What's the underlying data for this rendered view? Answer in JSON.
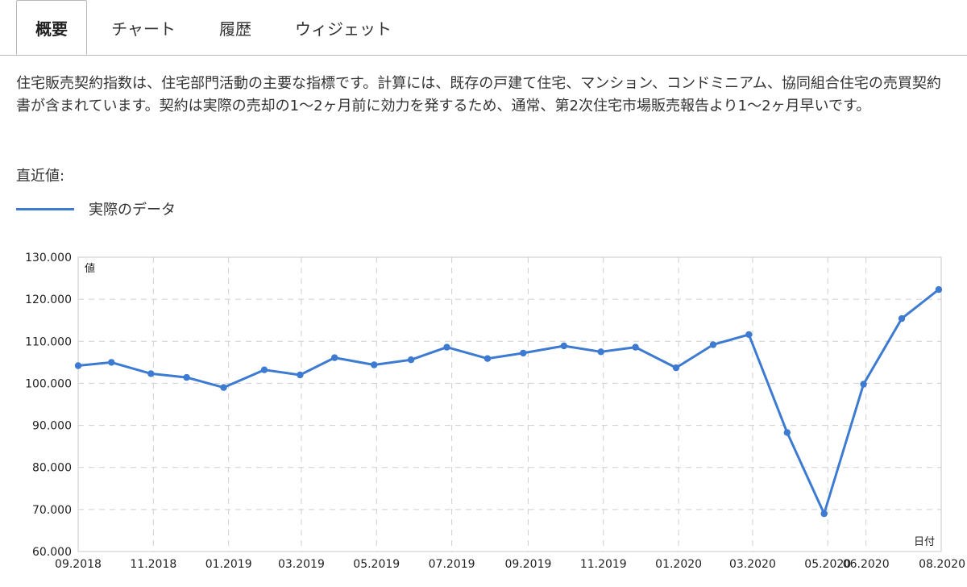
{
  "tabs": [
    {
      "label": "概要",
      "active": true
    },
    {
      "label": "チャート",
      "active": false
    },
    {
      "label": "履歴",
      "active": false
    },
    {
      "label": "ウィジェット",
      "active": false
    }
  ],
  "description": "住宅販売契約指数は、住宅部門活動の主要な指標です。計算には、既存の戸建て住宅、マンション、コンドミニアム、協同組合住宅の売買契約書が含まれています。契約は実際の売却の1〜2ヶ月前に効力を発するため、通常、第2次住宅市場販売報告より1〜2ヶ月早いです。",
  "latest_label": "直近値:",
  "legend": {
    "label": "実際のデータ",
    "color": "#3d7ad1"
  },
  "chart_data": {
    "type": "line",
    "ylabel": "値",
    "xlabel": "日付",
    "ylim": [
      60,
      130
    ],
    "yticks": [
      "60.000",
      "70.000",
      "80.000",
      "90.000",
      "100.000",
      "110.000",
      "120.000",
      "130.000"
    ],
    "xticks": [
      "09.2018",
      "11.2018",
      "01.2019",
      "03.2019",
      "05.2019",
      "07.2019",
      "09.2019",
      "11.2019",
      "01.2020",
      "03.2020",
      "05.2020",
      "06.2020",
      "08.2020"
    ],
    "grid": true,
    "series": [
      {
        "name": "実際のデータ",
        "color": "#3d7ad1",
        "points": [
          {
            "x": "2018-09-01",
            "y": 104.2
          },
          {
            "x": "2018-09-28",
            "y": 105.0
          },
          {
            "x": "2018-10-30",
            "y": 102.3
          },
          {
            "x": "2018-11-28",
            "y": 101.4
          },
          {
            "x": "2018-12-28",
            "y": 99.0
          },
          {
            "x": "2019-01-30",
            "y": 103.2
          },
          {
            "x": "2019-02-28",
            "y": 102.0
          },
          {
            "x": "2019-03-28",
            "y": 106.1
          },
          {
            "x": "2019-04-29",
            "y": 104.4
          },
          {
            "x": "2019-05-29",
            "y": 105.6
          },
          {
            "x": "2019-06-27",
            "y": 108.6
          },
          {
            "x": "2019-07-30",
            "y": 105.9
          },
          {
            "x": "2019-08-28",
            "y": 107.2
          },
          {
            "x": "2019-09-30",
            "y": 108.9
          },
          {
            "x": "2019-10-30",
            "y": 107.5
          },
          {
            "x": "2019-11-27",
            "y": 108.6
          },
          {
            "x": "2019-12-30",
            "y": 103.7
          },
          {
            "x": "2020-01-29",
            "y": 109.2
          },
          {
            "x": "2020-02-27",
            "y": 111.6
          },
          {
            "x": "2020-03-29",
            "y": 88.3
          },
          {
            "x": "2020-04-28",
            "y": 69.0
          },
          {
            "x": "2020-05-30",
            "y": 99.8
          },
          {
            "x": "2020-06-30",
            "y": 115.4
          },
          {
            "x": "2020-07-30",
            "y": 122.3
          }
        ]
      }
    ]
  }
}
